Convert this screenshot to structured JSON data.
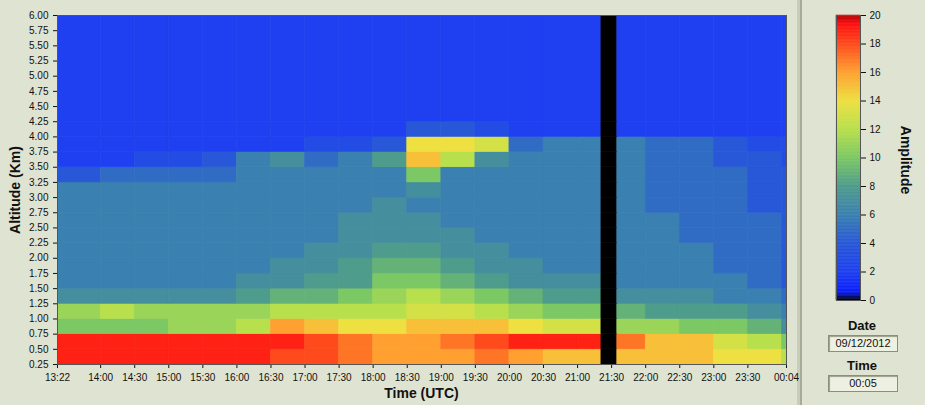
{
  "chart_data": {
    "type": "heatmap",
    "xlabel": "Time (UTC)",
    "ylabel": "Altitude (Km)",
    "xlim": [
      13.3667,
      24.0667
    ],
    "ylim": [
      0.25,
      6.0
    ],
    "xticks": [
      {
        "value": 13.3667,
        "label": "13:22"
      },
      {
        "value": 14,
        "label": "14:00"
      },
      {
        "value": 14.5,
        "label": "14:30"
      },
      {
        "value": 15,
        "label": "15:00"
      },
      {
        "value": 15.5,
        "label": "15:30"
      },
      {
        "value": 16,
        "label": "16:00"
      },
      {
        "value": 16.5,
        "label": "16:30"
      },
      {
        "value": 17,
        "label": "17:00"
      },
      {
        "value": 17.5,
        "label": "17:30"
      },
      {
        "value": 18,
        "label": "18:00"
      },
      {
        "value": 18.5,
        "label": "18:30"
      },
      {
        "value": 19,
        "label": "19:00"
      },
      {
        "value": 19.5,
        "label": "19:30"
      },
      {
        "value": 20,
        "label": "20:00"
      },
      {
        "value": 20.5,
        "label": "20:30"
      },
      {
        "value": 21,
        "label": "21:00"
      },
      {
        "value": 21.5,
        "label": "21:30"
      },
      {
        "value": 22,
        "label": "22:00"
      },
      {
        "value": 22.5,
        "label": "22:30"
      },
      {
        "value": 23,
        "label": "23:00"
      },
      {
        "value": 23.5,
        "label": "23:30"
      },
      {
        "value": 24.0667,
        "label": "00:04"
      }
    ],
    "yticks": [
      {
        "value": 0.25,
        "label": "0.25"
      },
      {
        "value": 0.5,
        "label": "0.50"
      },
      {
        "value": 0.75,
        "label": "0.75"
      },
      {
        "value": 1,
        "label": "1.00"
      },
      {
        "value": 1.25,
        "label": "1.25"
      },
      {
        "value": 1.5,
        "label": "1.50"
      },
      {
        "value": 1.75,
        "label": "1.75"
      },
      {
        "value": 2,
        "label": "2.00"
      },
      {
        "value": 2.25,
        "label": "2.25"
      },
      {
        "value": 2.5,
        "label": "2.50"
      },
      {
        "value": 2.75,
        "label": "2.75"
      },
      {
        "value": 3,
        "label": "3.00"
      },
      {
        "value": 3.25,
        "label": "3.25"
      },
      {
        "value": 3.5,
        "label": "3.50"
      },
      {
        "value": 3.75,
        "label": "3.75"
      },
      {
        "value": 4,
        "label": "4.00"
      },
      {
        "value": 4.25,
        "label": "4.25"
      },
      {
        "value": 4.5,
        "label": "4.50"
      },
      {
        "value": 4.75,
        "label": "4.75"
      },
      {
        "value": 5,
        "label": "5.00"
      },
      {
        "value": 5.25,
        "label": "5.25"
      },
      {
        "value": 5.5,
        "label": "5.50"
      },
      {
        "value": 5.75,
        "label": "5.75"
      },
      {
        "value": 6,
        "label": "6.00"
      }
    ],
    "x_bins": [
      13.3667,
      14,
      14.5,
      15,
      15.5,
      16,
      16.5,
      17,
      17.5,
      18,
      18.5,
      19,
      19.5,
      20,
      20.5,
      21,
      21.35,
      21.5833,
      22,
      22.5,
      23,
      23.5,
      24,
      24.0667
    ],
    "y_bins": [
      0.25,
      0.5,
      0.75,
      1.0,
      1.25,
      1.5,
      1.75,
      2.0,
      2.25,
      2.5,
      2.75,
      3.0,
      3.25,
      3.5,
      3.75,
      4.0,
      4.25,
      6.0
    ],
    "cells": [
      [
        19,
        19,
        19,
        19,
        19,
        19,
        18,
        18,
        17,
        16,
        16,
        16,
        17,
        16,
        15,
        15,
        null,
        15,
        15,
        15,
        14,
        14,
        12
      ],
      [
        19,
        19,
        19,
        19,
        19,
        19,
        19,
        18,
        17,
        16,
        16,
        17,
        18,
        19,
        19,
        19,
        null,
        17,
        15,
        15,
        13,
        12,
        10
      ],
      [
        10,
        10,
        10,
        11,
        11,
        12,
        16,
        15,
        14,
        14,
        15,
        15,
        15,
        14,
        13,
        13,
        null,
        11,
        11,
        10,
        10,
        9,
        7
      ],
      [
        11,
        12,
        11,
        11,
        11,
        11,
        12,
        12,
        12,
        12,
        13,
        13,
        12,
        11,
        10,
        10,
        null,
        9,
        8,
        8,
        8,
        7,
        6
      ],
      [
        7,
        7,
        7,
        7,
        7,
        8,
        9,
        9,
        10,
        11,
        12,
        11,
        10,
        9,
        8,
        8,
        null,
        7,
        7,
        7,
        6,
        6,
        5
      ],
      [
        6,
        6,
        6,
        6,
        6,
        7,
        7,
        8,
        8,
        10,
        10,
        9,
        8,
        7,
        7,
        7,
        null,
        6,
        6,
        6,
        6,
        5,
        4
      ],
      [
        6,
        6,
        6,
        6,
        6,
        6,
        7,
        7,
        8,
        9,
        9,
        8,
        7,
        7,
        6,
        6,
        null,
        6,
        6,
        6,
        5,
        5,
        4
      ],
      [
        6,
        6,
        6,
        6,
        6,
        6,
        6,
        7,
        7,
        8,
        8,
        7,
        7,
        6,
        6,
        6,
        null,
        6,
        6,
        6,
        5,
        5,
        4
      ],
      [
        6,
        6,
        6,
        6,
        6,
        6,
        6,
        6,
        7,
        7,
        7,
        7,
        6,
        6,
        6,
        6,
        null,
        6,
        6,
        5,
        5,
        5,
        4
      ],
      [
        6,
        6,
        6,
        6,
        6,
        6,
        6,
        6,
        7,
        7,
        7,
        6,
        6,
        6,
        6,
        6,
        null,
        6,
        6,
        5,
        5,
        5,
        4
      ],
      [
        6,
        6,
        6,
        6,
        6,
        6,
        6,
        6,
        6,
        7,
        6,
        6,
        6,
        6,
        6,
        6,
        null,
        6,
        5,
        5,
        5,
        4,
        4
      ],
      [
        6,
        6,
        6,
        6,
        6,
        6,
        6,
        6,
        6,
        6,
        7,
        6,
        6,
        6,
        6,
        6,
        null,
        6,
        5,
        5,
        5,
        4,
        4
      ],
      [
        4,
        5,
        5,
        5,
        5,
        6,
        6,
        6,
        6,
        6,
        10,
        6,
        6,
        6,
        6,
        6,
        null,
        6,
        5,
        5,
        5,
        4,
        4
      ],
      [
        2,
        2,
        3,
        3,
        4,
        6,
        7,
        5,
        6,
        8,
        15,
        12,
        7,
        6,
        6,
        6,
        null,
        6,
        5,
        5,
        4,
        4,
        3
      ],
      [
        2,
        2,
        2,
        2,
        2,
        2,
        2,
        3,
        3,
        4,
        14,
        14,
        13,
        5,
        6,
        6,
        null,
        6,
        5,
        5,
        4,
        3,
        3
      ],
      [
        2,
        2,
        2,
        2,
        2,
        2,
        2,
        2,
        2,
        2,
        4,
        4,
        3,
        2,
        2,
        2,
        null,
        2,
        2,
        2,
        2,
        2,
        2
      ],
      [
        2,
        2,
        2,
        2,
        2,
        2,
        2,
        2,
        2,
        2,
        2,
        2,
        2,
        2,
        2,
        2,
        null,
        2,
        2,
        2,
        2,
        2,
        2
      ]
    ],
    "colorbar": {
      "label": "Amplitude",
      "range": [
        0,
        20
      ],
      "ticks": [
        0,
        2,
        4,
        6,
        8,
        10,
        12,
        14,
        16,
        18,
        20
      ]
    },
    "date": {
      "label": "Date",
      "value": "09/12/2012"
    },
    "time": {
      "label": "Time",
      "value": "00:05"
    }
  }
}
